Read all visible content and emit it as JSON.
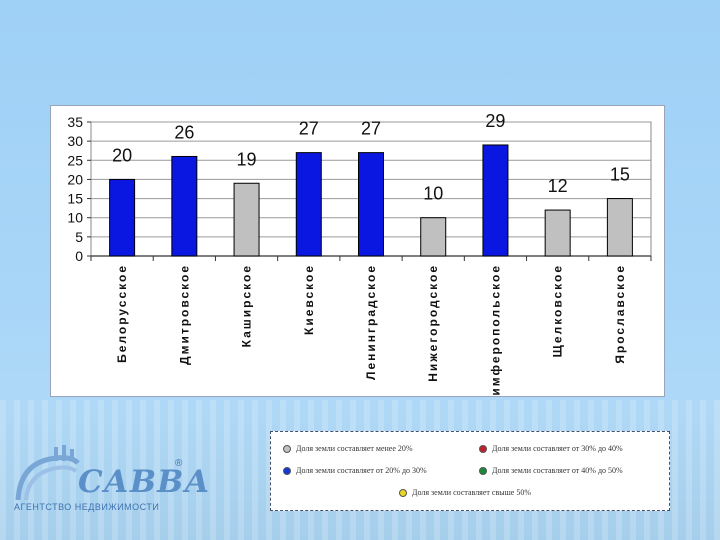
{
  "chart_data": {
    "type": "bar",
    "categories": [
      "Белорусское",
      "Дмитровское",
      "Каширское",
      "Киевское",
      "Ленинградское",
      "Нижегородское",
      "Симферопольское",
      "Щелковское",
      "Ярославское"
    ],
    "values": [
      20,
      26,
      19,
      27,
      27,
      10,
      29,
      12,
      15
    ],
    "bar_colors": [
      "#0a17e0",
      "#0a17e0",
      "#c0c0c0",
      "#0a17e0",
      "#0a17e0",
      "#c0c0c0",
      "#0a17e0",
      "#c0c0c0",
      "#c0c0c0"
    ],
    "yticks": [
      0,
      5,
      10,
      15,
      20,
      25,
      30,
      35
    ],
    "ylim": [
      0,
      35
    ],
    "grid": true,
    "title": "",
    "xlabel": "",
    "ylabel": ""
  },
  "legend": {
    "items": [
      {
        "label": "Доля земли составляет менее 20%",
        "color": "#c0c0c0"
      },
      {
        "label": "Доля земли составляет от 30% до 40%",
        "color": "#c0202a"
      },
      {
        "label": "Доля земли составляет от 20% до 30%",
        "color": "#1238d8"
      },
      {
        "label": "Доля земли составляет от 40% до 50%",
        "color": "#1a8a3a"
      },
      {
        "label": "Доля земли составляет свыше 50%",
        "color": "#e8d820"
      }
    ]
  },
  "logo": {
    "name": "САВВА",
    "subtitle": "АГЕНТСТВО НЕДВИЖИМОСТИ",
    "registered": "®"
  }
}
